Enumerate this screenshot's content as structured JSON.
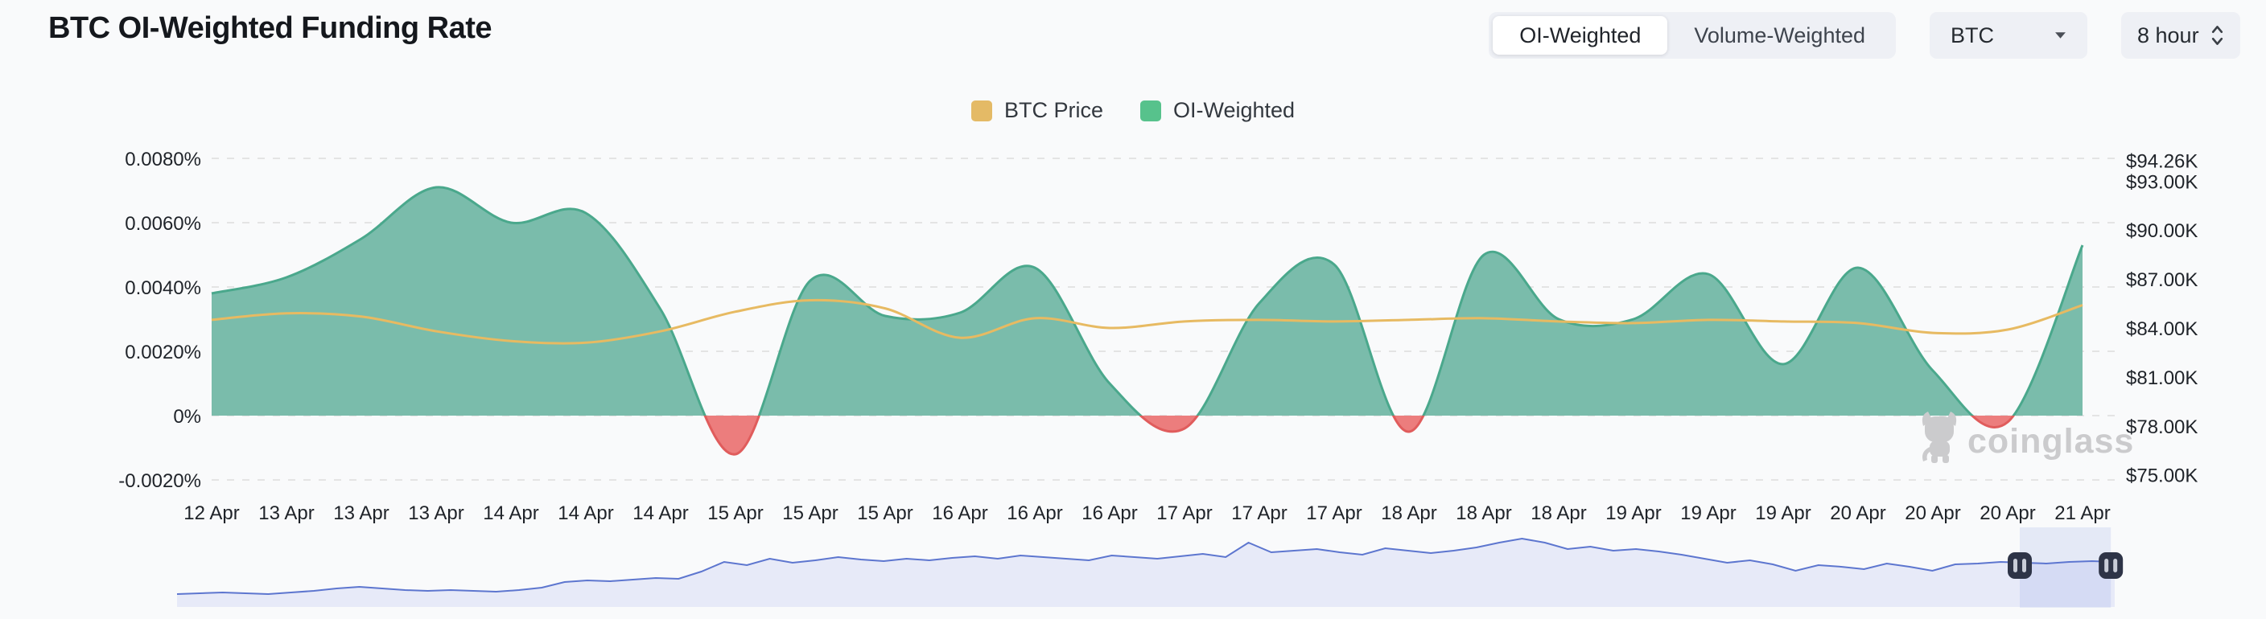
{
  "header": {
    "title": "BTC OI-Weighted Funding Rate",
    "tabs": [
      {
        "label": "OI-Weighted",
        "selected": true
      },
      {
        "label": "Volume-Weighted",
        "selected": false
      }
    ],
    "symbol_select": {
      "value": "BTC"
    },
    "interval_select": {
      "value": "8 hour"
    }
  },
  "legend": [
    {
      "label": "BTC Price",
      "color": "#e4ba66"
    },
    {
      "label": "OI-Weighted",
      "color": "#57c28c"
    }
  ],
  "watermark": "coinglass",
  "colors": {
    "price_line": "#e7ba62",
    "funding_fill_positive": "#7abcab",
    "funding_line_positive": "#4aa88c",
    "funding_fill_negative": "#ec7d7d",
    "funding_line_negative": "#e05c5c",
    "gridline": "#e4e4e4",
    "axis_text": "#1f2329",
    "navigator_line": "#5d76cf",
    "navigator_fill": "#e7eaf8",
    "navigator_window": "#5f78d8",
    "handle": "#2e3447",
    "handle_bars": "#c9cdd8",
    "watermark_color": "#cbcbcd"
  },
  "chart_data": {
    "type": "area",
    "title": "BTC OI-Weighted Funding Rate",
    "interval": "8 hour",
    "legend_position": "top-center",
    "grid": "horizontal-dashed",
    "x_labels": [
      "12 Apr",
      "13 Apr",
      "13 Apr",
      "13 Apr",
      "14 Apr",
      "14 Apr",
      "14 Apr",
      "15 Apr",
      "15 Apr",
      "15 Apr",
      "16 Apr",
      "16 Apr",
      "16 Apr",
      "17 Apr",
      "17 Apr",
      "17 Apr",
      "18 Apr",
      "18 Apr",
      "18 Apr",
      "19 Apr",
      "19 Apr",
      "19 Apr",
      "20 Apr",
      "20 Apr",
      "20 Apr",
      "21 Apr"
    ],
    "left_axis": {
      "unit": "%",
      "ticks": [
        {
          "label": "0.0080%",
          "value": 0.008
        },
        {
          "label": "0.0060%",
          "value": 0.006
        },
        {
          "label": "0.0040%",
          "value": 0.004
        },
        {
          "label": "0.0020%",
          "value": 0.002
        },
        {
          "label": "0%",
          "value": 0
        },
        {
          "label": "-0.0020%",
          "value": -0.002
        }
      ]
    },
    "right_axis": {
      "unit": "USD",
      "ticks": [
        {
          "label": "$94.26K",
          "value": 94.26
        },
        {
          "label": "$93.00K",
          "value": 93
        },
        {
          "label": "$90.00K",
          "value": 90
        },
        {
          "label": "$87.00K",
          "value": 87
        },
        {
          "label": "$84.00K",
          "value": 84
        },
        {
          "label": "$81.00K",
          "value": 81
        },
        {
          "label": "$78.00K",
          "value": 78
        },
        {
          "label": "$75.00K",
          "value": 75
        }
      ]
    },
    "series": [
      {
        "name": "OI-Weighted",
        "type": "area-spline",
        "axis": "left",
        "unit": "%",
        "values": [
          0.0038,
          0.0043,
          0.0055,
          0.0071,
          0.006,
          0.0063,
          0.0033,
          -0.0012,
          0.0042,
          0.0031,
          0.0032,
          0.0046,
          0.001,
          -0.0004,
          0.0035,
          0.0047,
          -0.0005,
          0.005,
          0.003,
          0.003,
          0.0044,
          0.0016,
          0.0046,
          0.0014,
          -0.0002,
          0.0053
        ]
      },
      {
        "name": "BTC Price",
        "type": "spline",
        "axis": "right",
        "unit": "K USD",
        "values": [
          84.5,
          84.9,
          84.7,
          83.8,
          83.2,
          83.1,
          83.8,
          85.0,
          85.7,
          85.2,
          83.4,
          84.6,
          84.0,
          84.4,
          84.5,
          84.4,
          84.5,
          84.6,
          84.4,
          84.3,
          84.5,
          84.4,
          84.3,
          83.7,
          83.9,
          85.4
        ]
      }
    ],
    "navigator": {
      "values": [
        0.16,
        0.17,
        0.18,
        0.17,
        0.16,
        0.18,
        0.2,
        0.23,
        0.25,
        0.23,
        0.21,
        0.2,
        0.21,
        0.2,
        0.19,
        0.21,
        0.24,
        0.31,
        0.33,
        0.32,
        0.34,
        0.36,
        0.35,
        0.44,
        0.56,
        0.52,
        0.6,
        0.55,
        0.58,
        0.62,
        0.59,
        0.57,
        0.6,
        0.58,
        0.61,
        0.63,
        0.6,
        0.64,
        0.62,
        0.6,
        0.58,
        0.64,
        0.62,
        0.6,
        0.63,
        0.66,
        0.62,
        0.8,
        0.68,
        0.7,
        0.72,
        0.68,
        0.65,
        0.73,
        0.7,
        0.67,
        0.7,
        0.74,
        0.8,
        0.85,
        0.8,
        0.72,
        0.75,
        0.7,
        0.72,
        0.69,
        0.65,
        0.6,
        0.55,
        0.58,
        0.53,
        0.45,
        0.52,
        0.5,
        0.47,
        0.54,
        0.5,
        0.45,
        0.53,
        0.54,
        0.56,
        0.55,
        0.54,
        0.56,
        0.57,
        0.56
      ],
      "window": [
        0.951,
        0.998
      ]
    }
  }
}
